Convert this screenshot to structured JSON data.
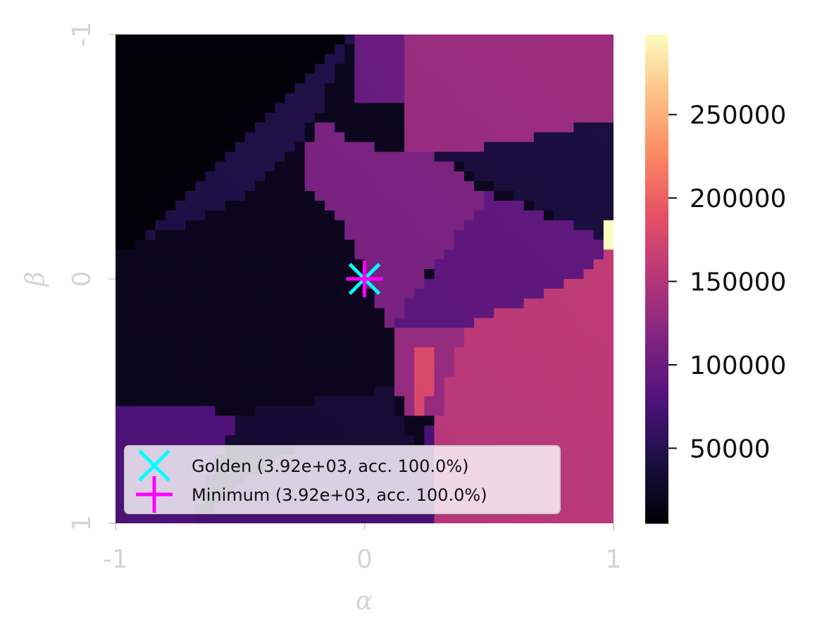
{
  "chart_data": {
    "type": "heatmap",
    "title": "",
    "xlabel": "α",
    "ylabel": "β",
    "x_ticks": [
      "-1",
      "0",
      "1"
    ],
    "y_ticks": [
      "-1",
      "0",
      "1"
    ],
    "xlim": [
      -1,
      1
    ],
    "ylim": [
      -1,
      1
    ],
    "y_axis_inverted": true,
    "colormap": "magma",
    "colorbar": {
      "min": 5000,
      "max": 298000,
      "ticks": [
        50000,
        100000,
        150000,
        200000,
        250000
      ],
      "tick_labels": [
        "50000",
        "100000",
        "150000",
        "200000",
        "250000"
      ]
    },
    "grid": false,
    "grid_size": [
      50,
      50
    ],
    "regions": [
      {
        "vertices": [
          [
            -1,
            -1
          ],
          [
            -0.05,
            -1
          ],
          [
            -1,
            -0.05
          ]
        ],
        "value": 8000
      },
      {
        "vertices": [
          [
            -0.05,
            -1
          ],
          [
            0.17,
            -1
          ],
          [
            0.15,
            -0.72
          ],
          [
            -0.05,
            -0.72
          ]
        ],
        "value": 95000
      },
      {
        "vertices": [
          [
            0.17,
            -1
          ],
          [
            1,
            -1
          ],
          [
            1,
            -0.65
          ],
          [
            0.3,
            -0.5
          ],
          [
            0.15,
            -0.5
          ]
        ],
        "value": 128000
      },
      {
        "vertices": [
          [
            -1,
            -0.05
          ],
          [
            -0.05,
            -1
          ],
          [
            -0.2,
            -0.65
          ],
          [
            -0.45,
            -0.35
          ],
          [
            -1,
            -0.1
          ]
        ],
        "value": 45000
      },
      {
        "vertices": [
          [
            -0.2,
            -0.65
          ],
          [
            0,
            -0.55
          ],
          [
            0.3,
            -0.5
          ],
          [
            0.5,
            -0.35
          ],
          [
            0.1,
            0.2
          ],
          [
            -0.1,
            -0.25
          ],
          [
            -0.25,
            -0.4
          ]
        ],
        "value": 110000
      },
      {
        "vertices": [
          [
            0.3,
            -0.5
          ],
          [
            1,
            -0.65
          ],
          [
            1,
            -0.15
          ]
        ],
        "value": 38000
      },
      {
        "vertices": [
          [
            -1,
            0.5
          ],
          [
            -1,
            -0.1
          ],
          [
            -0.45,
            -0.35
          ],
          [
            -0.25,
            -0.4
          ],
          [
            -0.1,
            -0.25
          ],
          [
            0.1,
            0.2
          ],
          [
            0.1,
            0.45
          ],
          [
            -0.5,
            0.55
          ]
        ],
        "value": 20000
      },
      {
        "vertices": [
          [
            0.5,
            -0.35
          ],
          [
            1,
            -0.15
          ],
          [
            0.85,
            0
          ],
          [
            0.4,
            0.2
          ],
          [
            0.1,
            0.2
          ]
        ],
        "value": 88000
      },
      {
        "vertices": [
          [
            0.4,
            0.2
          ],
          [
            0.85,
            0
          ],
          [
            1,
            -0.15
          ],
          [
            1,
            1
          ],
          [
            0.3,
            1
          ],
          [
            0.3,
            0.55
          ]
        ],
        "value": 155000
      },
      {
        "vertices": [
          [
            0.1,
            0.2
          ],
          [
            0.4,
            0.2
          ],
          [
            0.3,
            0.55
          ],
          [
            0.15,
            0.55
          ]
        ],
        "value": 130000
      },
      {
        "vertices": [
          [
            0.18,
            0.3
          ],
          [
            0.28,
            0.3
          ],
          [
            0.25,
            0.6
          ],
          [
            0.18,
            0.55
          ]
        ],
        "value": 180000
      },
      {
        "vertices": [
          [
            -1,
            0.5
          ],
          [
            -0.5,
            0.55
          ],
          [
            -0.7,
            1
          ],
          [
            -1,
            1
          ]
        ],
        "value": 80000
      },
      {
        "vertices": [
          [
            -0.5,
            0.55
          ],
          [
            0.1,
            0.45
          ],
          [
            0.2,
            0.7
          ],
          [
            -0.3,
            0.7
          ],
          [
            -0.7,
            1
          ]
        ],
        "value": 35000
      },
      {
        "vertices": [
          [
            -0.3,
            0.7
          ],
          [
            0.2,
            0.7
          ],
          [
            0.3,
            0.55
          ],
          [
            0.3,
            1
          ],
          [
            -0.7,
            1
          ]
        ],
        "value": 75000
      },
      {
        "vertices": [
          [
            0.97,
            -0.25
          ],
          [
            1,
            -0.25
          ],
          [
            1,
            -0.12
          ],
          [
            0.97,
            -0.12
          ]
        ],
        "value": 298000
      }
    ],
    "markers": [
      {
        "name": "Golden",
        "label": "Golden (3.92e+03, acc. 100.0%)",
        "symbol": "x",
        "color": "#00ffff",
        "alpha": 0.0,
        "beta": 0.0
      },
      {
        "name": "Minimum",
        "label": "Minimum (3.92e+03, acc. 100.0%)",
        "symbol": "+",
        "color": "#ff00ff",
        "alpha": 0.0,
        "beta": 0.0
      }
    ],
    "legend_position": "lower-left"
  }
}
